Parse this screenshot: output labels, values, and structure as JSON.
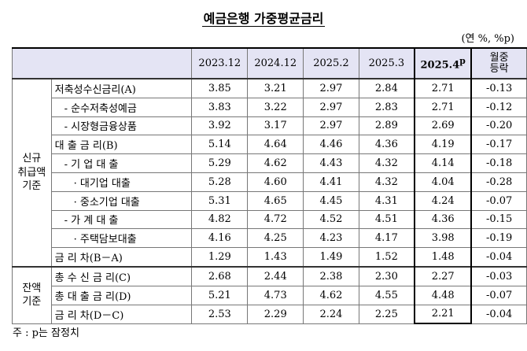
{
  "title": "예금은행 가중평균금리",
  "unit": "(연 %, %p)",
  "table": {
    "columns": [
      "2023.12",
      "2024.12",
      "2025.2",
      "2025.3",
      {
        "text": "2025.4",
        "sup": "p"
      }
    ],
    "change": [
      "월중",
      "등락"
    ],
    "groups": [
      {
        "label": [
          "신규",
          "취급액",
          "기준"
        ],
        "rows": [
          {
            "label": "저축성수신금리(A)",
            "values": [
              "3.85",
              "3.21",
              "2.97",
              "2.84",
              "2.71",
              "-0.13"
            ]
          },
          {
            "label": "- 순수저축성예금",
            "values": [
              "3.83",
              "3.22",
              "2.97",
              "2.83",
              "2.71",
              "-0.12"
            ]
          },
          {
            "label": "- 시장형금융상품",
            "values": [
              "3.92",
              "3.17",
              "2.97",
              "2.89",
              "2.69",
              "-0.20"
            ]
          },
          {
            "label": "대 출 금 리(B)",
            "values": [
              "5.14",
              "4.64",
              "4.46",
              "4.36",
              "4.19",
              "-0.17"
            ]
          },
          {
            "label": "- 기 업 대 출",
            "values": [
              "5.29",
              "4.62",
              "4.43",
              "4.32",
              "4.14",
              "-0.18"
            ]
          },
          {
            "label": "· 대기업 대출",
            "values": [
              "5.28",
              "4.60",
              "4.41",
              "4.32",
              "4.04",
              "-0.28"
            ]
          },
          {
            "label": "· 중소기업 대출",
            "values": [
              "5.31",
              "4.65",
              "4.45",
              "4.31",
              "4.24",
              "-0.07"
            ]
          },
          {
            "label": "- 가 계 대 출",
            "values": [
              "4.82",
              "4.72",
              "4.52",
              "4.51",
              "4.36",
              "-0.15"
            ]
          },
          {
            "label": "· 주택담보대출",
            "values": [
              "4.16",
              "4.25",
              "4.23",
              "4.17",
              "3.98",
              "-0.19"
            ]
          },
          {
            "label": "금 리 차(B－A)",
            "values": [
              "1.29",
              "1.43",
              "1.49",
              "1.52",
              "1.48",
              "-0.04"
            ]
          }
        ]
      },
      {
        "label": [
          "잔액",
          "기준"
        ],
        "rows": [
          {
            "label": "총 수 신 금 리(C)",
            "values": [
              "2.68",
              "2.44",
              "2.38",
              "2.30",
              "2.27",
              "-0.03"
            ]
          },
          {
            "label": "총 대 출 금 리(D)",
            "values": [
              "5.21",
              "4.73",
              "4.62",
              "4.55",
              "4.48",
              "-0.07"
            ]
          },
          {
            "label": "금 리 차(D－C)",
            "values": [
              "2.53",
              "2.29",
              "2.24",
              "2.25",
              "2.21",
              "-0.04"
            ]
          }
        ]
      }
    ]
  },
  "footnote": "주 : p는 잠정치"
}
